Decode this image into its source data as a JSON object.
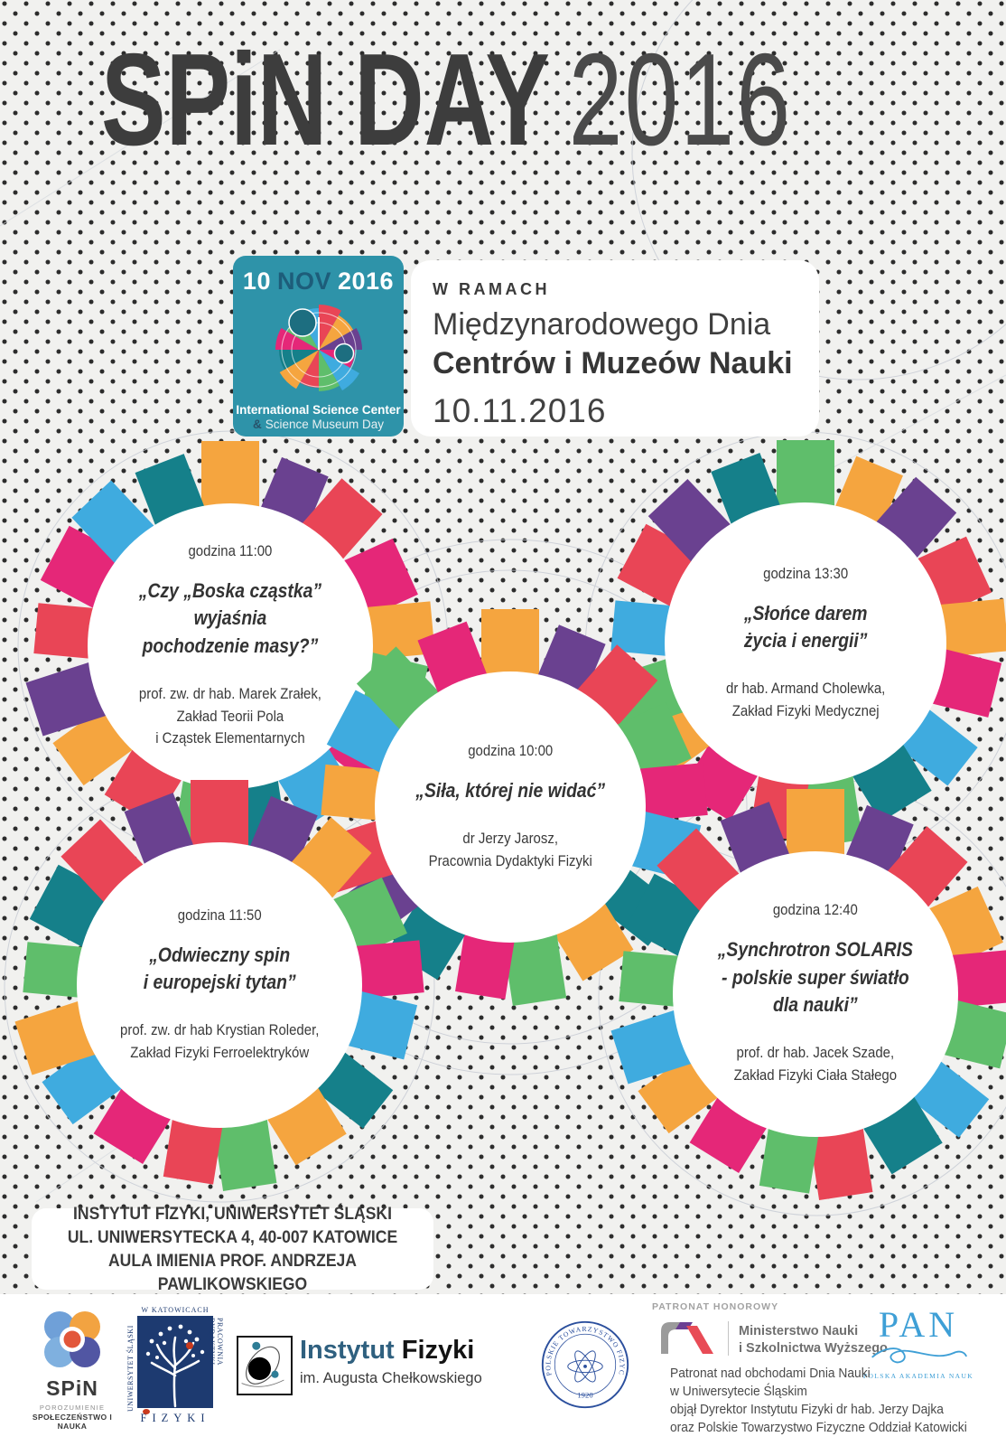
{
  "title": {
    "main": "SPiN DAY",
    "year": "2016"
  },
  "badge": {
    "day": "10",
    "month": "NOV",
    "year": "2016",
    "caption_line1": "International Science Center",
    "caption_amp": "&",
    "caption_line2": "Science Museum Day",
    "wheel_colors": [
      "#E94556",
      "#F5A53F",
      "#6A4190",
      "#E52778",
      "#3FABDF",
      "#5FBE6B",
      "#E94556",
      "#F5A53F",
      "#15808A",
      "#E52778",
      "#5FBE6B",
      "#3FABDF"
    ]
  },
  "intro": {
    "kicker": "W RAMACH",
    "line1": "Międzynarodowego Dnia",
    "line2": "Centrów i Muzeów Nauki",
    "date": "10.11.2016"
  },
  "wheels": [
    {
      "time": "godzina 11:00",
      "title": "„Czy „Boska cząstka”\nwyjaśnia\npochodzenie masy?”",
      "speaker": "prof. zw. dr hab. Marek Zrałek,\nZakład Teorii Pola\ni Cząstek Elementarnych",
      "segments": [
        "#F5A53F",
        "#6A4190",
        "#E94556",
        "#E52778",
        "#F5A53F",
        "#5FBE6B",
        "#E52778",
        "#3FABDF",
        "#15808A",
        "#5FBE6B",
        "#E94556",
        "#F5A53F",
        "#6A4190",
        "#E94556",
        "#E52778",
        "#3FABDF",
        "#15808A"
      ]
    },
    {
      "time": "godzina 13:30",
      "title": "„Słońce darem\nżycia i energii”",
      "speaker": "dr hab. Armand Cholewka,\nZakład Fizyki Medycznej",
      "segments": [
        "#5FBE6B",
        "#F5A53F",
        "#6A4190",
        "#E94556",
        "#F5A53F",
        "#E52778",
        "#3FABDF",
        "#15808A",
        "#5FBE6B",
        "#E94556",
        "#E52778",
        "#F5A53F",
        "#5FBE6B",
        "#3FABDF",
        "#E94556",
        "#6A4190",
        "#15808A"
      ]
    },
    {
      "time": "godzina 10:00",
      "title": "„Siła, której nie widać”",
      "speaker": "dr Jerzy Jarosz,\nPracownia Dydaktyki Fizyki",
      "segments": [
        "#F5A53F",
        "#6A4190",
        "#E94556",
        "#5FBE6B",
        "#E52778",
        "#3FABDF",
        "#15808A",
        "#F5A53F",
        "#5FBE6B",
        "#E52778",
        "#15808A",
        "#6A4190",
        "#E94556",
        "#F5A53F",
        "#3FABDF",
        "#5FBE6B",
        "#E52778"
      ]
    },
    {
      "time": "godzina 11:50",
      "title": "„Odwieczny spin\ni europejski tytan”",
      "speaker": "prof. zw. dr hab Krystian Roleder,\nZakład Fizyki Ferroelektryków",
      "segments": [
        "#E94556",
        "#6A4190",
        "#F5A53F",
        "#5FBE6B",
        "#E52778",
        "#3FABDF",
        "#15808A",
        "#F5A53F",
        "#5FBE6B",
        "#E94556",
        "#E52778",
        "#3FABDF",
        "#F5A53F",
        "#5FBE6B",
        "#15808A",
        "#E94556",
        "#6A4190"
      ]
    },
    {
      "time": "godzina 12:40",
      "title": "„Synchrotron SOLARIS\n- polskie super światło\ndla nauki”",
      "speaker": "prof. dr hab. Jacek Szade,\nZakład Fizyki Ciała Stałego",
      "segments": [
        "#F5A53F",
        "#6A4190",
        "#E94556",
        "#F5A53F",
        "#E52778",
        "#5FBE6B",
        "#3FABDF",
        "#15808A",
        "#E94556",
        "#5FBE6B",
        "#E52778",
        "#F5A53F",
        "#3FABDF",
        "#5FBE6B",
        "#15808A",
        "#E94556",
        "#6A4190"
      ]
    }
  ],
  "venue": {
    "lines": "INSTYTUT FIZYKI, UNIWERSYTET ŚLĄSKI\nUL. UNIWERSYTECKA 4, 40-007 KATOWICE\nAULA IMIENIA PROF. ANDRZEJA PAWLIKOWSKIEGO"
  },
  "footer": {
    "spin_logo": {
      "name": "SPiN",
      "sub1": "POROZUMIENIE",
      "sub2": "SPOŁECZEŃSTWO I NAUKA"
    },
    "fizyki_logo": {
      "top": "W KATOWICACH",
      "left": "UNIWERSYTET ŚLĄSKI",
      "right": "PRACOWNIA DYDAKTYKI",
      "bottom": "FIZYKI"
    },
    "instytut": {
      "accent": "Instytut",
      "rest": " Fizyki",
      "sub": "im. Augusta Chełkowskiego"
    },
    "ptf": {
      "ring": "POLSKIE TOWARZYSTWO FIZYCZNE",
      "year": "1920"
    },
    "patronat_header": "PATRONAT HONOROWY",
    "ministry": {
      "line1": "Ministerstwo Nauki",
      "line2": "i Szkolnictwa Wyższego"
    },
    "pan": {
      "name": "PAN",
      "sub": "POLSKA AKADEMIA NAUK"
    },
    "patronat": "Patronat nad obchodami Dnia Nauki\nw Uniwersytecie Śląskim\nobjął Dyrektor Instytutu Fizyki dr hab. Jerzy Dajka\noraz Polskie Towarzystwo Fizyczne Oddział Katowicki"
  },
  "colors": {
    "badge_teal": "#2E93A9",
    "palette": {
      "orange": "#F5A53F",
      "purple": "#6A4190",
      "red": "#E94556",
      "magenta": "#E52778",
      "green": "#5FBE6B",
      "blue": "#3FABDF",
      "teal": "#15808A"
    },
    "pan_blue": "#3E9FD6",
    "ptf_navy": "#2B4F9D",
    "fizyki_navy": "#1D3A70",
    "text": "#3A3A3A"
  }
}
